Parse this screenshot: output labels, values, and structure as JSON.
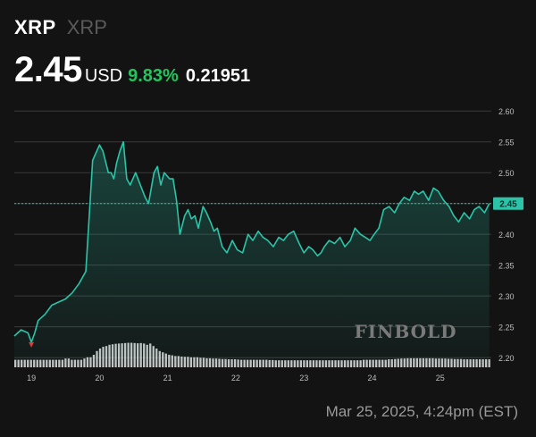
{
  "header": {
    "ticker": "XRP",
    "name": "XRP"
  },
  "quote": {
    "price": "2.45",
    "currency": "USD",
    "change_pct": "9.83%",
    "change_abs": "0.21951"
  },
  "watermark": "FINBOLD",
  "footer": {
    "timestamp": "Mar 25, 2025, 4:24pm (EST)"
  },
  "colors": {
    "background": "#131313",
    "line": "#2bc4a8",
    "change_positive": "#22c55e",
    "low_marker": "#e23a3a",
    "price_tag": "#2bc4a8"
  },
  "chart_data": {
    "type": "line",
    "title": "",
    "xlabel": "",
    "ylabel": "",
    "x_tick_labels": [
      "19",
      "20",
      "21",
      "22",
      "23",
      "24",
      "25"
    ],
    "y_tick_labels": [
      "2.60",
      "2.55",
      "2.50",
      "2.45",
      "2.40",
      "2.35",
      "2.30",
      "2.25",
      "2.20"
    ],
    "ylim": [
      2.19,
      2.625
    ],
    "xlim": [
      0,
      7.0
    ],
    "grid": true,
    "current_price_label": "2.45",
    "current_price_value": 2.45,
    "series": [
      {
        "x": [
          0,
          0.1,
          0.2,
          0.25,
          0.3,
          0.35,
          0.45,
          0.55,
          0.65,
          0.75,
          0.85,
          0.95,
          1.05,
          1.15,
          1.25,
          1.3,
          1.38,
          1.42,
          1.46,
          1.5,
          1.55,
          1.6,
          1.65,
          1.7,
          1.78,
          1.85,
          1.92,
          1.97,
          2.05,
          2.1,
          2.15,
          2.2,
          2.28,
          2.33,
          2.38,
          2.43,
          2.5,
          2.55,
          2.6,
          2.65,
          2.7,
          2.77,
          2.82,
          2.88,
          2.93,
          2.98,
          3.05,
          3.12,
          3.2,
          3.27,
          3.35,
          3.43,
          3.5,
          3.58,
          3.65,
          3.72,
          3.8,
          3.88,
          3.95,
          4.02,
          4.1,
          4.18,
          4.25,
          4.32,
          4.38,
          4.45,
          4.5,
          4.55,
          4.62,
          4.7,
          4.78,
          4.85,
          4.93,
          5.0,
          5.08,
          5.15,
          5.22,
          5.28,
          5.35,
          5.42,
          5.5,
          5.58,
          5.65,
          5.72,
          5.8,
          5.87,
          5.93,
          6.0,
          6.08,
          6.15,
          6.22,
          6.3,
          6.38,
          6.45,
          6.52,
          6.6,
          6.68,
          6.75,
          6.82,
          6.9,
          6.97
        ],
        "values": [
          2.235,
          2.245,
          2.24,
          2.225,
          2.24,
          2.26,
          2.27,
          2.285,
          2.29,
          2.295,
          2.305,
          2.32,
          2.34,
          2.52,
          2.545,
          2.535,
          2.5,
          2.5,
          2.49,
          2.515,
          2.535,
          2.55,
          2.49,
          2.48,
          2.5,
          2.48,
          2.46,
          2.45,
          2.5,
          2.51,
          2.48,
          2.5,
          2.49,
          2.49,
          2.455,
          2.4,
          2.43,
          2.44,
          2.425,
          2.43,
          2.41,
          2.445,
          2.435,
          2.42,
          2.405,
          2.41,
          2.38,
          2.37,
          2.39,
          2.375,
          2.37,
          2.4,
          2.39,
          2.405,
          2.395,
          2.39,
          2.38,
          2.395,
          2.39,
          2.4,
          2.405,
          2.385,
          2.37,
          2.38,
          2.375,
          2.365,
          2.37,
          2.38,
          2.39,
          2.385,
          2.395,
          2.38,
          2.39,
          2.41,
          2.4,
          2.395,
          2.39,
          2.4,
          2.41,
          2.44,
          2.445,
          2.435,
          2.45,
          2.46,
          2.455,
          2.47,
          2.465,
          2.47,
          2.455,
          2.475,
          2.47,
          2.455,
          2.445,
          2.43,
          2.42,
          2.435,
          2.425,
          2.44,
          2.445,
          2.435,
          2.45
        ]
      }
    ],
    "low_marker": {
      "x": 0.25,
      "y": 2.225
    },
    "volume": {
      "values": [
        0.3,
        0.3,
        0.3,
        0.3,
        0.3,
        0.3,
        0.3,
        0.3,
        0.3,
        0.3,
        0.3,
        0.3,
        0.3,
        0.3,
        0.3,
        0.3,
        0.35,
        0.35,
        0.3,
        0.3,
        0.3,
        0.3,
        0.35,
        0.4,
        0.4,
        0.5,
        0.65,
        0.75,
        0.82,
        0.85,
        0.9,
        0.92,
        0.94,
        0.95,
        0.96,
        0.97,
        0.98,
        0.98,
        0.97,
        0.96,
        0.97,
        0.95,
        0.9,
        0.95,
        0.85,
        0.75,
        0.65,
        0.6,
        0.55,
        0.5,
        0.48,
        0.45,
        0.45,
        0.43,
        0.42,
        0.42,
        0.4,
        0.4,
        0.4,
        0.38,
        0.38,
        0.36,
        0.36,
        0.35,
        0.35,
        0.34,
        0.33,
        0.33,
        0.32,
        0.32,
        0.32,
        0.31,
        0.3,
        0.3,
        0.3,
        0.3,
        0.3,
        0.3,
        0.3,
        0.3,
        0.3,
        0.29,
        0.29,
        0.28,
        0.28,
        0.28,
        0.28,
        0.28,
        0.28,
        0.28,
        0.28,
        0.28,
        0.28,
        0.28,
        0.28,
        0.28,
        0.28,
        0.28,
        0.28,
        0.28,
        0.28,
        0.28,
        0.28,
        0.28,
        0.28,
        0.28,
        0.28,
        0.28,
        0.28,
        0.28,
        0.28,
        0.3,
        0.3,
        0.3,
        0.3,
        0.3,
        0.3,
        0.3,
        0.3,
        0.32,
        0.32,
        0.33,
        0.34,
        0.35,
        0.35,
        0.36,
        0.36,
        0.36,
        0.36,
        0.36,
        0.36,
        0.36,
        0.36,
        0.36,
        0.35,
        0.35,
        0.35,
        0.35,
        0.34,
        0.34,
        0.33,
        0.33,
        0.33,
        0.32,
        0.32,
        0.32,
        0.32,
        0.32,
        0.32,
        0.32,
        0.32,
        0.32
      ]
    }
  }
}
